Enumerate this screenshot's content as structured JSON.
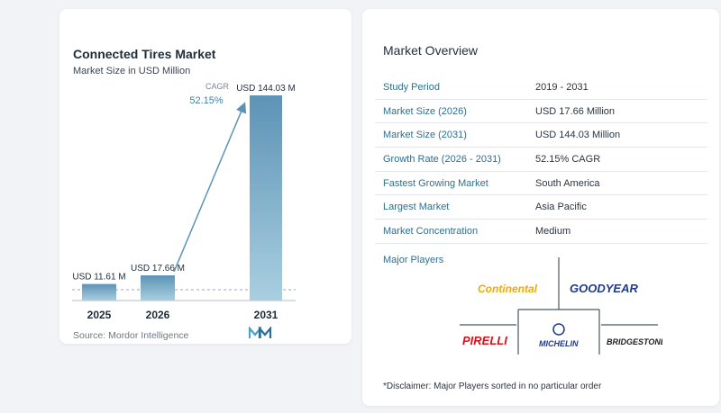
{
  "chart_data": {
    "type": "bar",
    "title": "Connected Tires Market",
    "subtitle": "Market Size in USD Million",
    "categories": [
      "2025",
      "2026",
      "2031"
    ],
    "values": [
      11.61,
      17.66,
      144.03
    ],
    "data_labels": [
      "USD 11.61 M",
      "USD 17.66 M",
      "USD 144.03 M"
    ],
    "annotation": {
      "label": "CAGR",
      "value": "52.15%"
    },
    "source": "Source: Mordor Intelligence",
    "colors": {
      "bar_start": "#a9cfe0",
      "bar_end": "#5d93b6",
      "arrow": "#5d93b6"
    }
  },
  "overview": {
    "title": "Market Overview",
    "rows": [
      {
        "label": "Study Period",
        "value": "2019 - 2031"
      },
      {
        "label": "Market Size (2026)",
        "value": "USD 17.66 Million"
      },
      {
        "label": "Market Size (2031)",
        "value": "USD 144.03 Million"
      },
      {
        "label": "Growth Rate (2026 - 2031)",
        "value": "52.15% CAGR"
      },
      {
        "label": "Fastest Growing Market",
        "value": "South America"
      },
      {
        "label": "Largest Market",
        "value": "Asia Pacific"
      },
      {
        "label": "Market Concentration",
        "value": "Medium"
      }
    ]
  },
  "players": {
    "title": "Major Players",
    "logos": [
      "Continental",
      "GOODYEAR",
      "PIRELLI",
      "MICHELIN",
      "BRIDGESTONE"
    ],
    "disclaimer": "*Disclaimer: Major Players sorted in no particular order"
  }
}
